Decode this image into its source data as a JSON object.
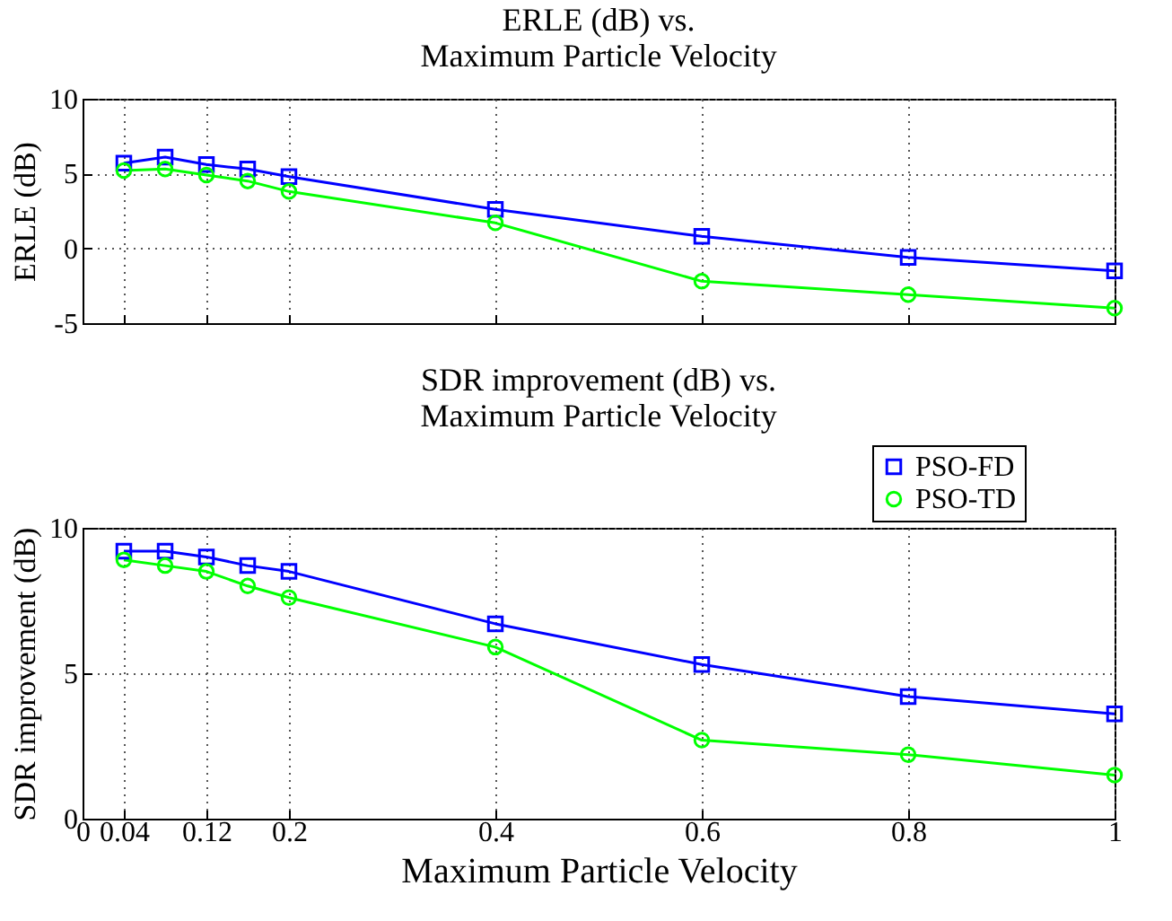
{
  "chart_data": [
    {
      "type": "line",
      "title": "ERLE (dB) vs.\nMaximum Particle Velocity",
      "ylabel": "ERLE (dB)",
      "xlim": [
        0,
        1
      ],
      "xticks": [
        0,
        0.04,
        0.12,
        0.2,
        0.4,
        0.6,
        0.8,
        1
      ],
      "ylim": [
        -5,
        10
      ],
      "yticks": [
        -5,
        0,
        5,
        10
      ],
      "grid": true,
      "tick_labels": "y",
      "line_style": "solid",
      "x": [
        0.04,
        0.08,
        0.12,
        0.16,
        0.2,
        0.4,
        0.6,
        0.8,
        1
      ],
      "series": [
        {
          "color": "#0000ff",
          "marker": "square",
          "values": [
            5.7,
            6.1,
            5.6,
            5.3,
            4.8,
            2.6,
            0.8,
            -0.6,
            -1.5
          ]
        },
        {
          "color": "#00ff00",
          "marker": "circle",
          "values": [
            5.2,
            5.3,
            4.9,
            4.5,
            3.8,
            1.7,
            -2.2,
            -3.1,
            -4.0
          ]
        }
      ]
    },
    {
      "type": "line",
      "title": "SDR improvement (dB) vs.\nMaximum Particle Velocity",
      "xlabel": "Maximum Particle Velocity",
      "ylabel": "SDR improvement (dB)",
      "xlim": [
        0,
        1
      ],
      "xticks": [
        0,
        0.04,
        0.12,
        0.2,
        0.4,
        0.6,
        0.8,
        1
      ],
      "ylim": [
        0,
        10
      ],
      "yticks": [
        0,
        5,
        10
      ],
      "grid": true,
      "legend": "top right",
      "line_style": "solid",
      "x": [
        0.04,
        0.08,
        0.12,
        0.16,
        0.2,
        0.4,
        0.6,
        0.8,
        1
      ],
      "series": [
        {
          "name": "PSO-FD",
          "color": "#0000ff",
          "marker": "square",
          "values": [
            9.2,
            9.2,
            9.0,
            8.7,
            8.5,
            6.7,
            5.3,
            4.2,
            3.6
          ]
        },
        {
          "name": "PSO-TD",
          "color": "#00ff00",
          "marker": "circle",
          "values": [
            8.9,
            8.7,
            8.5,
            8.0,
            7.6,
            5.9,
            2.7,
            2.2,
            1.5
          ]
        }
      ]
    }
  ]
}
